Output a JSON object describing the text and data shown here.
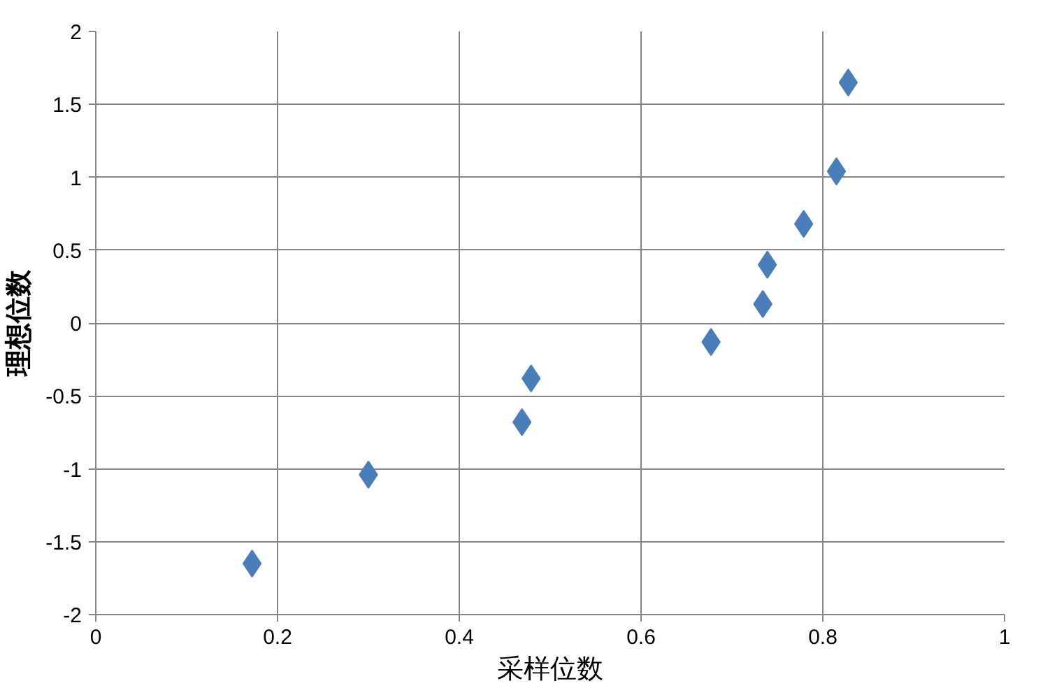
{
  "chart_data": {
    "type": "scatter",
    "xlabel": "采样位数",
    "ylabel": "理想位数",
    "x": [
      0.172,
      0.3,
      0.469,
      0.479,
      0.677,
      0.734,
      0.739,
      0.779,
      0.815,
      0.828
    ],
    "series": [
      {
        "color": "#4a7ebb",
        "values": [
          -1.65,
          -1.04,
          -0.68,
          -0.38,
          -0.13,
          0.13,
          0.4,
          0.68,
          1.04,
          1.65
        ]
      }
    ],
    "xlim": [
      0,
      1
    ],
    "ylim": [
      -2,
      2
    ],
    "xticks": [
      0,
      0.2,
      0.4,
      0.6,
      0.8,
      1
    ],
    "yticks": [
      -2,
      -1.5,
      -1,
      -0.5,
      0,
      0.5,
      1,
      1.5,
      2
    ],
    "grid": true,
    "marker": "diamond"
  }
}
